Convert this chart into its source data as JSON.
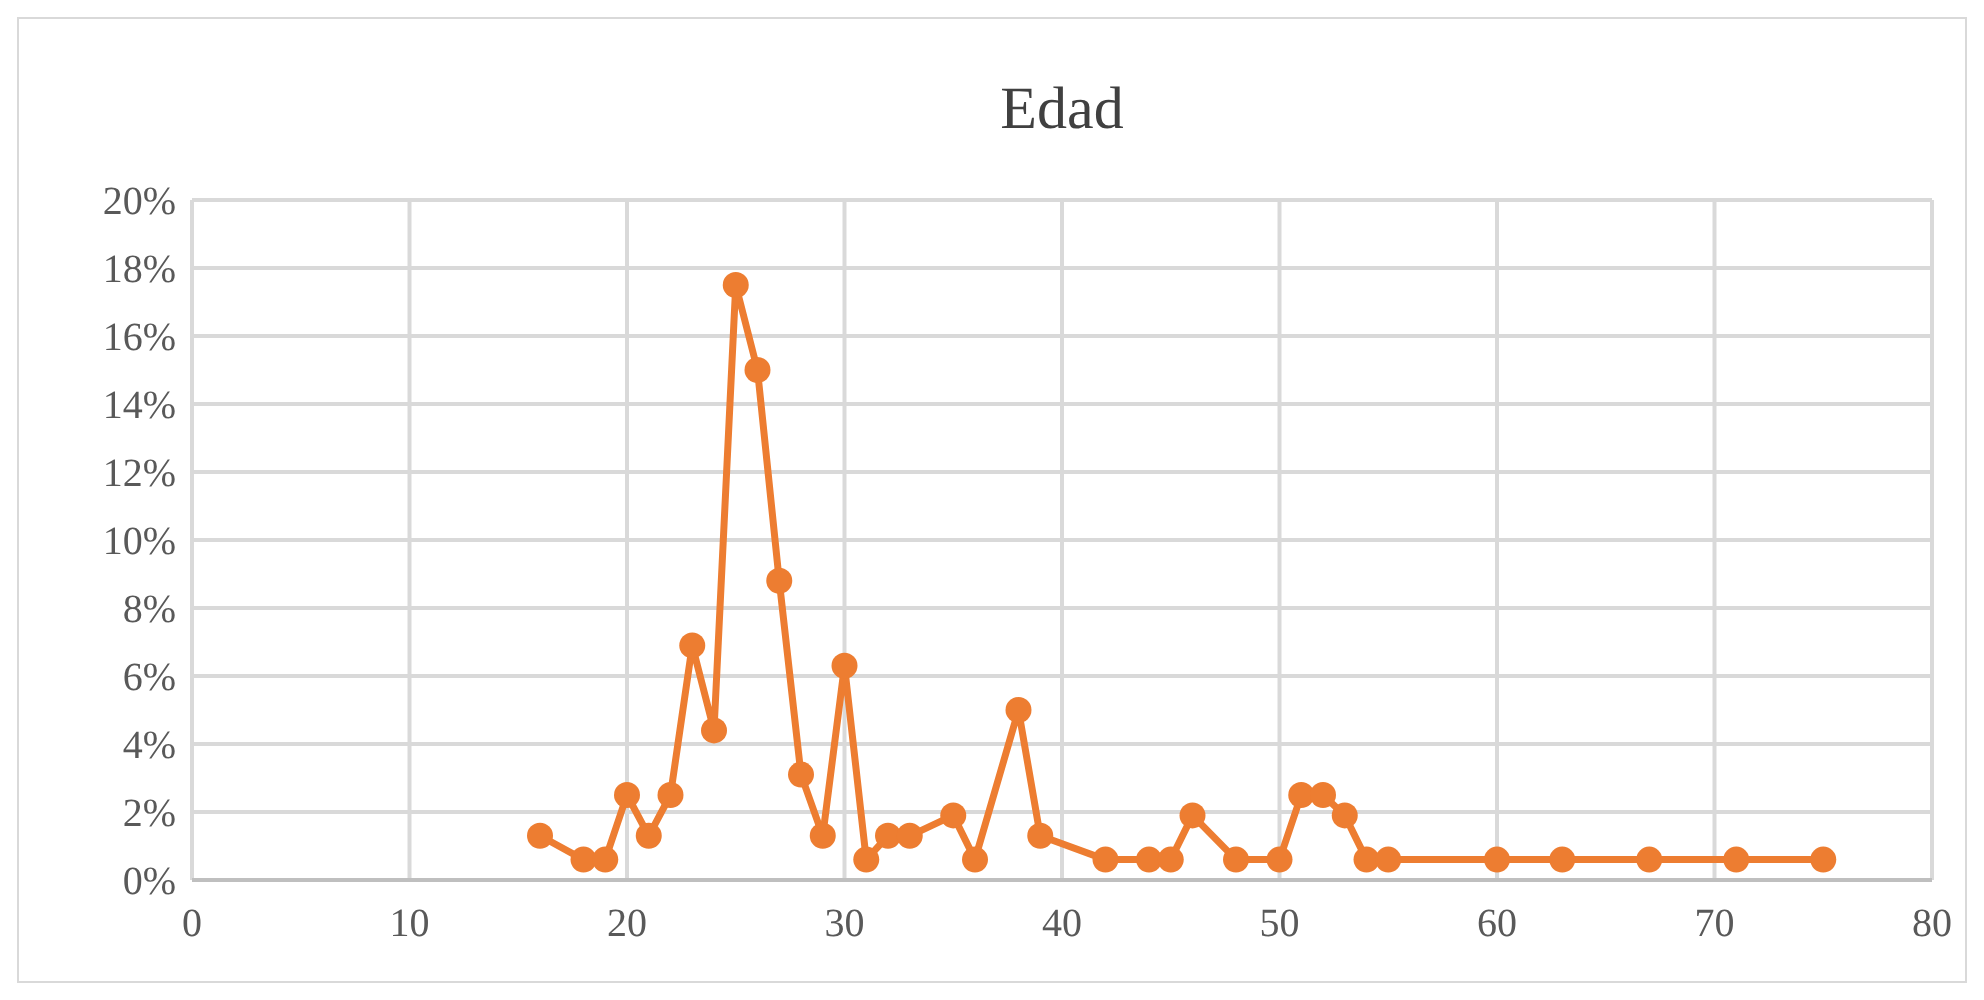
{
  "chart_data": {
    "type": "line",
    "title": "Edad",
    "x": [
      16,
      18,
      19,
      20,
      21,
      22,
      23,
      24,
      25,
      26,
      27,
      28,
      29,
      30,
      31,
      32,
      33,
      35,
      36,
      38,
      39,
      42,
      44,
      45,
      46,
      48,
      50,
      51,
      52,
      53,
      54,
      55,
      60,
      63,
      67,
      71,
      75
    ],
    "series": [
      {
        "color": "#ed7d31",
        "values": [
          1.3,
          0.6,
          0.6,
          2.5,
          1.3,
          2.5,
          6.9,
          4.4,
          17.5,
          15,
          8.8,
          3.1,
          1.3,
          6.3,
          0.6,
          1.3,
          1.3,
          1.9,
          0.6,
          5,
          1.3,
          0.6,
          0.6,
          0.6,
          1.9,
          0.6,
          0.6,
          2.5,
          2.5,
          1.9,
          0.6,
          0.6,
          0.6,
          0.6,
          0.6,
          0.6,
          0.6
        ]
      }
    ],
    "xlim": [
      0,
      80
    ],
    "xticks": [
      0,
      10,
      20,
      30,
      40,
      50,
      60,
      70,
      80
    ],
    "ylim": [
      0,
      20
    ],
    "yticks": [
      {
        "value": 0,
        "label": "0%"
      },
      {
        "value": 2,
        "label": "2%"
      },
      {
        "value": 4,
        "label": "4%"
      },
      {
        "value": 6,
        "label": "6%"
      },
      {
        "value": 8,
        "label": "8%"
      },
      {
        "value": 10,
        "label": "10%"
      },
      {
        "value": 12,
        "label": "12%"
      },
      {
        "value": 14,
        "label": "14%"
      },
      {
        "value": 16,
        "label": "16%"
      },
      {
        "value": 18,
        "label": "18%"
      },
      {
        "value": 20,
        "label": "20%"
      }
    ],
    "grid": true,
    "marker": "circle",
    "line_style": "solid"
  }
}
